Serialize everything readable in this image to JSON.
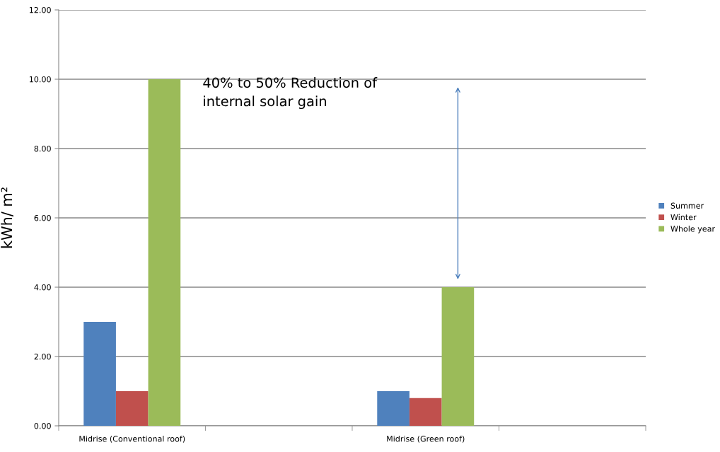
{
  "chart_data": {
    "type": "bar",
    "ylabel": "kWh/ m²",
    "categories": [
      "Midrise (Conventional roof)",
      null,
      "Midrise (Green roof)",
      null
    ],
    "series": [
      {
        "name": "Summer",
        "color": "#4f81bd",
        "values": [
          3.0,
          null,
          1.0,
          null
        ]
      },
      {
        "name": "Winter",
        "color": "#c0504d",
        "values": [
          1.0,
          null,
          0.8,
          null
        ]
      },
      {
        "name": "Whole year",
        "color": "#9bbb59",
        "values": [
          10.0,
          null,
          4.0,
          null
        ]
      }
    ],
    "ylim": [
      0,
      12
    ],
    "yticks": [
      {
        "value": 0,
        "label": "0.00"
      },
      {
        "value": 2,
        "label": "2.00"
      },
      {
        "value": 4,
        "label": "4.00"
      },
      {
        "value": 6,
        "label": "6.00"
      },
      {
        "value": 8,
        "label": "8.00"
      },
      {
        "value": 10,
        "label": "10.00"
      },
      {
        "value": 12,
        "label": "12.00"
      }
    ],
    "grid": "y",
    "legend": "right",
    "annotations": [
      "40% to 50% Reduction of\ninternal solar gain"
    ]
  }
}
